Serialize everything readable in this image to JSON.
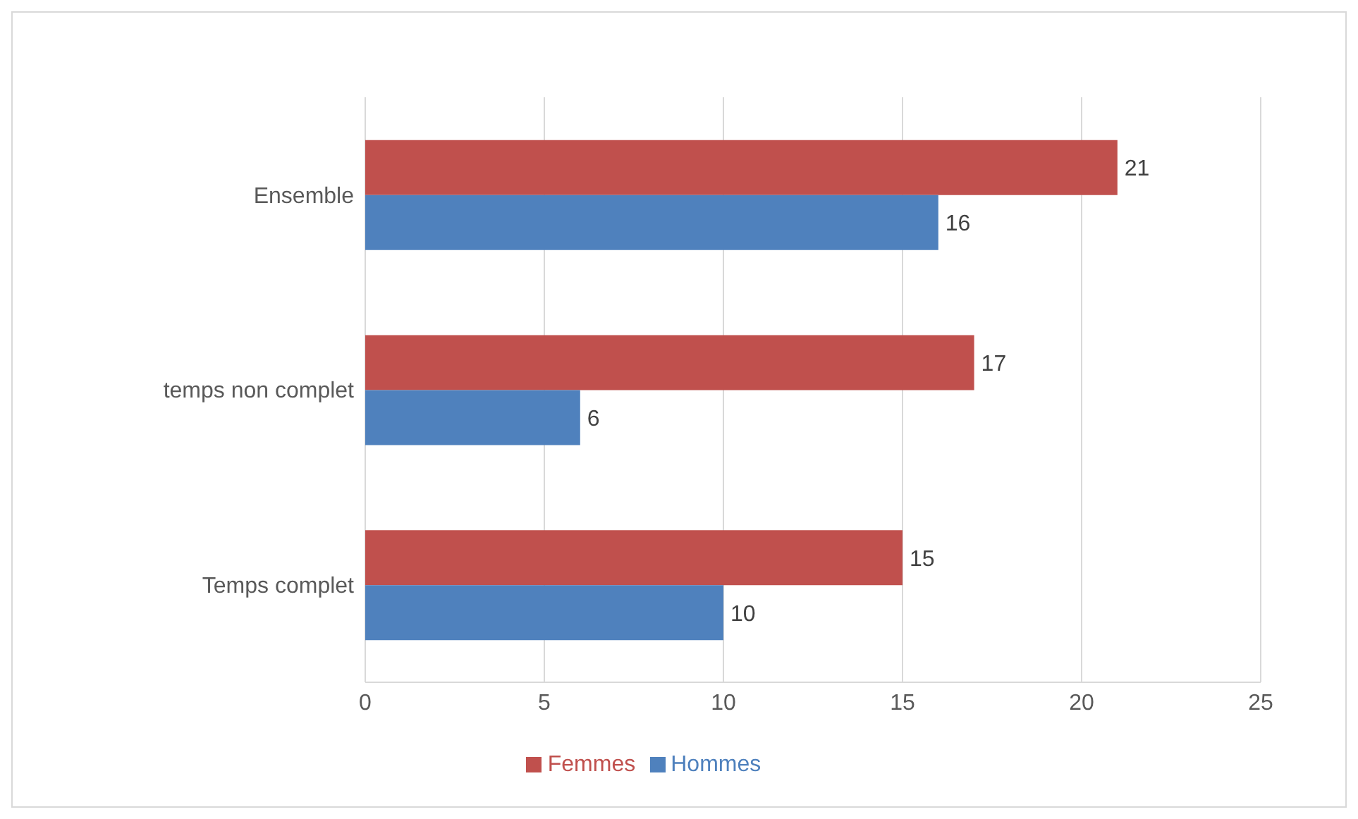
{
  "chart_data": {
    "type": "bar",
    "orientation": "horizontal",
    "categories": [
      "Ensemble",
      "temps non complet",
      "Temps complet"
    ],
    "series": [
      {
        "name": "Femmes",
        "color": "#c0504d",
        "values": [
          21,
          17,
          15
        ]
      },
      {
        "name": "Hommes",
        "color": "#4f81bd",
        "values": [
          16,
          6,
          10
        ]
      }
    ],
    "xlim": [
      0,
      25
    ],
    "xticks": [
      0,
      5,
      10,
      15,
      20,
      25
    ],
    "grid": "x",
    "legend": "bottom",
    "data_labels": true
  }
}
